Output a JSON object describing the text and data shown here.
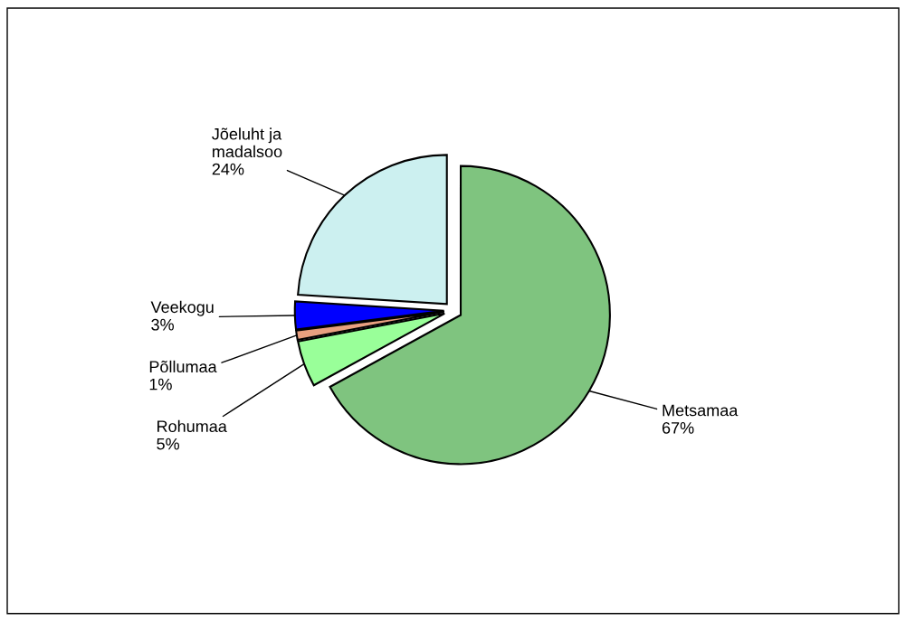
{
  "chart_data": {
    "type": "pie",
    "categories": [
      "Metsamaa",
      "Rohumaa",
      "Põllumaa",
      "Veekogu",
      "Jõeluht ja\nmadalsoo"
    ],
    "values": [
      67,
      5,
      1,
      3,
      24
    ],
    "value_labels": [
      "67%",
      "5%",
      "1%",
      "3%",
      "24%"
    ],
    "colors": [
      "#7fc47f",
      "#99ff99",
      "#e8a080",
      "#0000ff",
      "#ccf0f0"
    ],
    "legend": false
  }
}
